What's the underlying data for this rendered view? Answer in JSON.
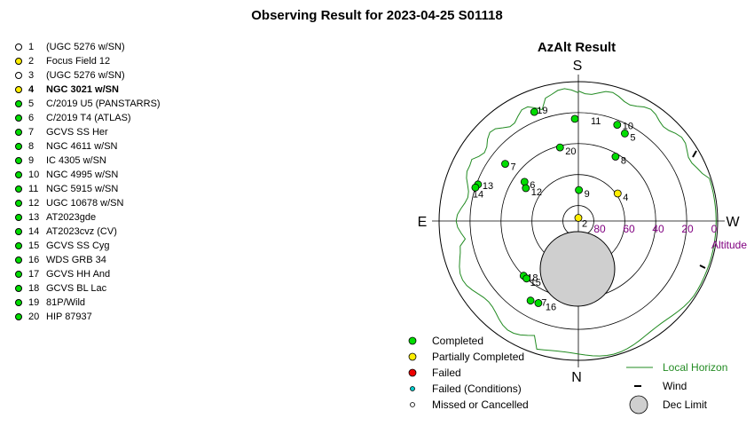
{
  "title": "Observing Result for 2023-04-25 S01118",
  "azalt_title": "AzAlt Result",
  "colors": {
    "completed": "#00dd00",
    "partial": "#ffee00",
    "failed": "#ee0000",
    "failed_conditions": "#00cccc",
    "missed": "#ffffff",
    "horizon": "#228b22",
    "dec_limit_fill": "#cfcfcf",
    "altitude_label": "#800080"
  },
  "targets": [
    {
      "num": "1",
      "name": "(UGC 5276 w/SN)",
      "status": "missed",
      "bold": false
    },
    {
      "num": "2",
      "name": "Focus Field 12",
      "status": "partial",
      "bold": false
    },
    {
      "num": "3",
      "name": "(UGC 5276 w/SN)",
      "status": "missed",
      "bold": false
    },
    {
      "num": "4",
      "name": "NGC 3021 w/SN",
      "status": "partial",
      "bold": true
    },
    {
      "num": "5",
      "name": "C/2019 U5 (PANSTARRS)",
      "status": "completed",
      "bold": false
    },
    {
      "num": "6",
      "name": "C/2019 T4 (ATLAS)",
      "status": "completed",
      "bold": false
    },
    {
      "num": "7",
      "name": "GCVS SS Her",
      "status": "completed",
      "bold": false
    },
    {
      "num": "8",
      "name": "NGC 4611 w/SN",
      "status": "completed",
      "bold": false
    },
    {
      "num": "9",
      "name": "IC 4305 w/SN",
      "status": "completed",
      "bold": false
    },
    {
      "num": "10",
      "name": "NGC 4995 w/SN",
      "status": "completed",
      "bold": false
    },
    {
      "num": "11",
      "name": "NGC 5915 w/SN",
      "status": "completed",
      "bold": false
    },
    {
      "num": "12",
      "name": "UGC 10678 w/SN",
      "status": "completed",
      "bold": false
    },
    {
      "num": "13",
      "name": "AT2023gde",
      "status": "completed",
      "bold": false
    },
    {
      "num": "14",
      "name": "AT2023cvz (CV)",
      "status": "completed",
      "bold": false
    },
    {
      "num": "15",
      "name": "GCVS SS Cyg",
      "status": "completed",
      "bold": false
    },
    {
      "num": "16",
      "name": "WDS GRB 34",
      "status": "completed",
      "bold": false
    },
    {
      "num": "17",
      "name": "GCVS HH And",
      "status": "completed",
      "bold": false
    },
    {
      "num": "18",
      "name": "GCVS BL Lac",
      "status": "completed",
      "bold": false
    },
    {
      "num": "19",
      "name": "81P/Wild",
      "status": "completed",
      "bold": false
    },
    {
      "num": "20",
      "name": "HIP 87937",
      "status": "completed",
      "bold": false
    }
  ],
  "compass": {
    "top": "S",
    "bottom": "N",
    "left": "E",
    "right": "W"
  },
  "altitude_ticks": [
    "80",
    "60",
    "40",
    "20",
    "0"
  ],
  "altitude_label": "Altitude",
  "plot_points": [
    {
      "label": "19",
      "alt": 14,
      "az": 338,
      "status": "completed"
    },
    {
      "label": "11",
      "alt": 24,
      "az": 358,
      "status": "completed"
    },
    {
      "label": "10",
      "alt": 23,
      "az": 22,
      "status": "completed"
    },
    {
      "label": "5",
      "alt": 26,
      "az": 28,
      "status": "completed"
    },
    {
      "label": "20",
      "alt": 41,
      "az": 346,
      "status": "completed"
    },
    {
      "label": "8",
      "alt": 42,
      "az": 30,
      "status": "completed"
    },
    {
      "label": "7",
      "alt": 30,
      "az": 308,
      "status": "completed"
    },
    {
      "label": "6",
      "alt": 47,
      "az": 306,
      "status": "completed"
    },
    {
      "label": "12",
      "alt": 50,
      "az": 302,
      "status": "completed"
    },
    {
      "label": "13",
      "alt": 21,
      "az": 290,
      "status": "completed"
    },
    {
      "label": "14",
      "alt": 20,
      "az": 288,
      "status": "completed"
    },
    {
      "label": "9",
      "alt": 70,
      "az": 1,
      "status": "completed"
    },
    {
      "label": "4",
      "alt": 59,
      "az": 55,
      "status": "partial"
    },
    {
      "label": "2",
      "alt": 88,
      "az": 0,
      "status": "partial"
    },
    {
      "label": "18",
      "alt": 40,
      "az": 225,
      "status": "completed"
    },
    {
      "label": "15",
      "alt": 40,
      "az": 222,
      "status": "completed"
    },
    {
      "label": "17",
      "alt": 30,
      "az": 211,
      "status": "completed"
    },
    {
      "label": "16",
      "alt": 31,
      "az": 206,
      "status": "completed"
    }
  ],
  "legend": {
    "completed": "Completed",
    "partial": "Partially Completed",
    "failed": "Failed",
    "failed_conditions": "Failed (Conditions)",
    "missed": "Missed or Cancelled",
    "local_horizon": "Local Horizon",
    "wind": "Wind",
    "dec_limit": "Dec Limit"
  }
}
